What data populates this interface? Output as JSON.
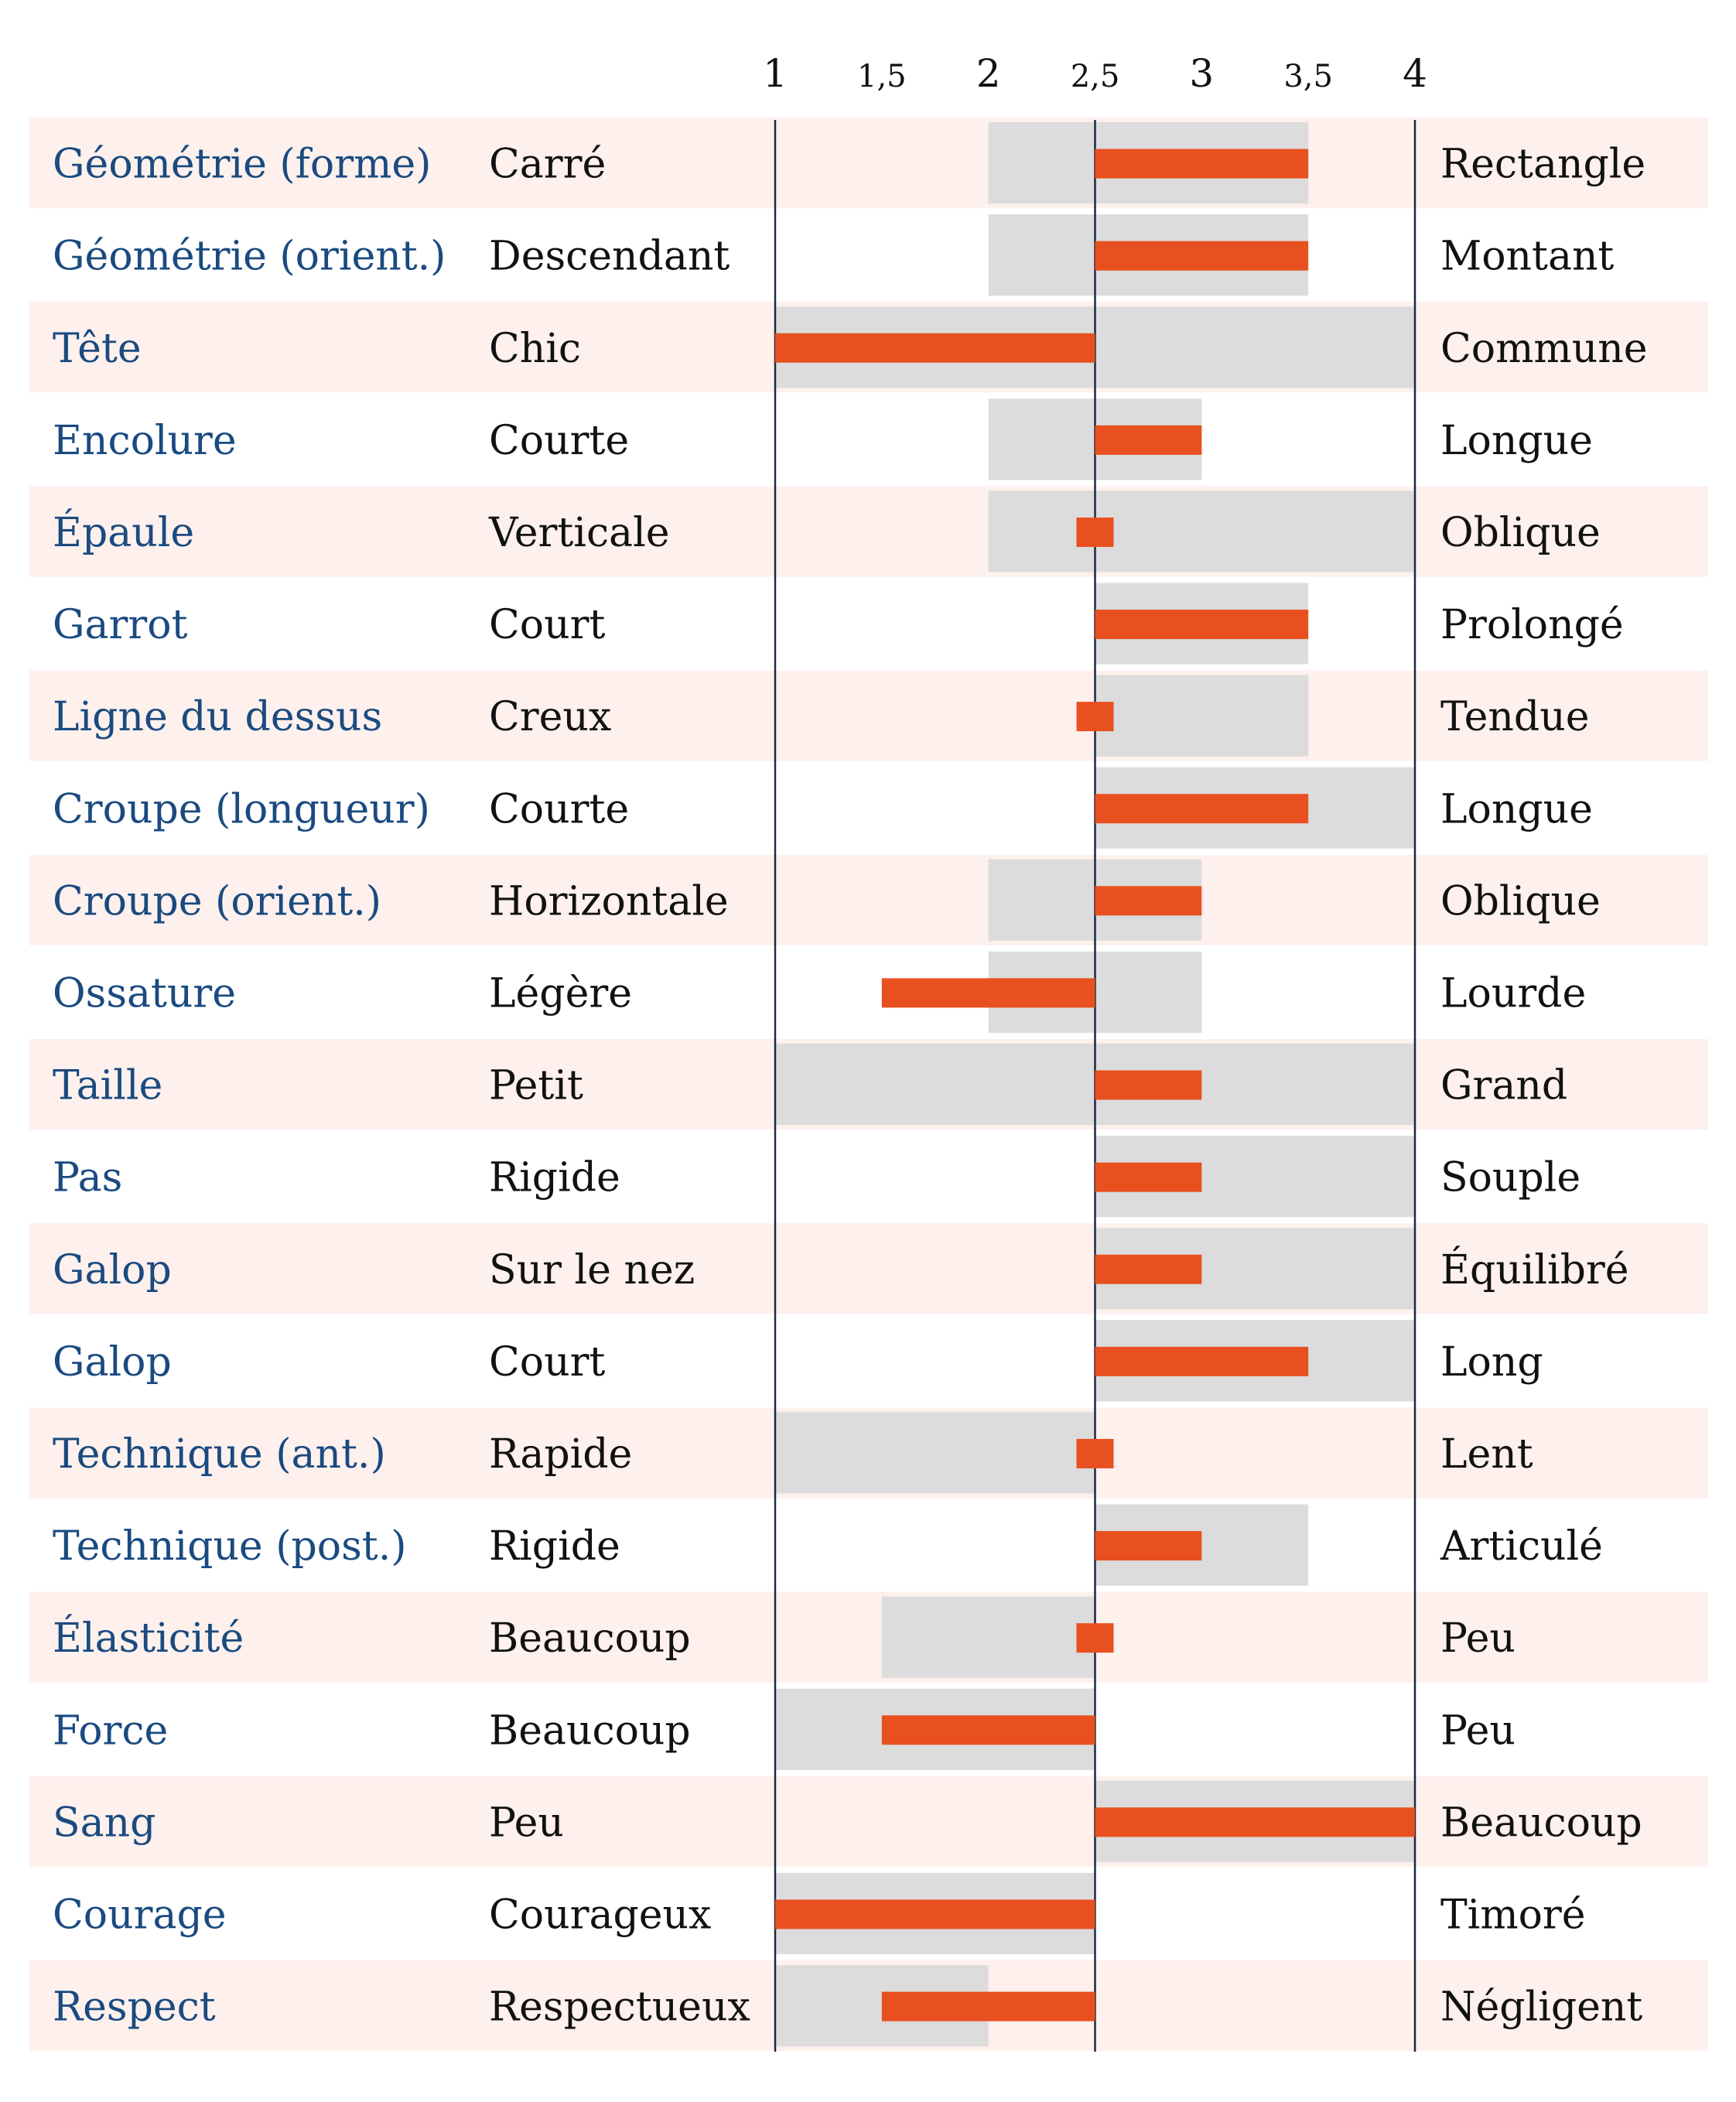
{
  "colors": {
    "row_band": "#fdf0ed",
    "range_fill": "#dcdcdc",
    "value_bar": "#e8501f",
    "axis_line": "#1c2a44",
    "trait_text": "#1a4a80",
    "pole_text": "#111111"
  },
  "chart_data": {
    "type": "bar",
    "orientation": "horizontal",
    "title": "",
    "xlabel": "",
    "ylabel": "",
    "xlim": [
      1,
      4
    ],
    "center": 2.5,
    "grid": false,
    "legend": "none",
    "tick_labels": [
      {
        "value": 1,
        "label": "1",
        "major": true
      },
      {
        "value": 1.5,
        "label": "1,5",
        "major": false
      },
      {
        "value": 2,
        "label": "2",
        "major": true
      },
      {
        "value": 2.5,
        "label": "2,5",
        "major": false
      },
      {
        "value": 3,
        "label": "3",
        "major": true
      },
      {
        "value": 3.5,
        "label": "3,5",
        "major": false
      },
      {
        "value": 4,
        "label": "4",
        "major": true
      }
    ],
    "rows": [
      {
        "trait": "Géométrie (forme)",
        "left": "Carré",
        "right": "Rectangle",
        "range": [
          2,
          3.5
        ],
        "value": 3.5
      },
      {
        "trait": "Géométrie (orient.)",
        "left": "Descendant",
        "right": "Montant",
        "range": [
          2,
          3.5
        ],
        "value": 3.5
      },
      {
        "trait": "Tête",
        "left": "Chic",
        "right": "Commune",
        "range": [
          1,
          4
        ],
        "value": 1
      },
      {
        "trait": "Encolure",
        "left": "Courte",
        "right": "Longue",
        "range": [
          2,
          3
        ],
        "value": 3
      },
      {
        "trait": "Épaule",
        "left": "Verticale",
        "right": "Oblique",
        "range": [
          2,
          4
        ],
        "value": 2.5
      },
      {
        "trait": "Garrot",
        "left": "Court",
        "right": "Prolongé",
        "range": [
          2.5,
          3.5
        ],
        "value": 3.5
      },
      {
        "trait": "Ligne du dessus",
        "left": "Creux",
        "right": "Tendue",
        "range": [
          2.5,
          3.5
        ],
        "value": 2.5
      },
      {
        "trait": "Croupe (longueur)",
        "left": "Courte",
        "right": "Longue",
        "range": [
          2.5,
          4
        ],
        "value": 3.5
      },
      {
        "trait": "Croupe (orient.)",
        "left": "Horizontale",
        "right": "Oblique",
        "range": [
          2,
          3
        ],
        "value": 3
      },
      {
        "trait": "Ossature",
        "left": "Légère",
        "right": "Lourde",
        "range": [
          2,
          3
        ],
        "value": 1.5
      },
      {
        "trait": "Taille",
        "left": "Petit",
        "right": "Grand",
        "range": [
          1,
          4
        ],
        "value": 3
      },
      {
        "trait": "Pas",
        "left": "Rigide",
        "right": "Souple",
        "range": [
          2.5,
          4
        ],
        "value": 3
      },
      {
        "trait": "Galop",
        "left": "Sur le nez",
        "right": "Équilibré",
        "range": [
          2.5,
          4
        ],
        "value": 3
      },
      {
        "trait": "Galop",
        "left": "Court",
        "right": "Long",
        "range": [
          2.5,
          4
        ],
        "value": 3.5
      },
      {
        "trait": "Technique (ant.)",
        "left": "Rapide",
        "right": "Lent",
        "range": [
          1,
          2.5
        ],
        "value": 2.5
      },
      {
        "trait": "Technique (post.)",
        "left": "Rigide",
        "right": "Articulé",
        "range": [
          2.5,
          3.5
        ],
        "value": 3
      },
      {
        "trait": "Élasticité",
        "left": "Beaucoup",
        "right": "Peu",
        "range": [
          1.5,
          2.5
        ],
        "value": 2.5
      },
      {
        "trait": "Force",
        "left": "Beaucoup",
        "right": "Peu",
        "range": [
          1,
          2.5
        ],
        "value": 1.5
      },
      {
        "trait": "Sang",
        "left": "Peu",
        "right": "Beaucoup",
        "range": [
          2.5,
          4
        ],
        "value": 4
      },
      {
        "trait": "Courage",
        "left": "Courageux",
        "right": "Timoré",
        "range": [
          1,
          2.5
        ],
        "value": 1
      },
      {
        "trait": "Respect",
        "left": "Respectueux",
        "right": "Négligent",
        "range": [
          1,
          2
        ],
        "value": 1.5
      }
    ]
  }
}
